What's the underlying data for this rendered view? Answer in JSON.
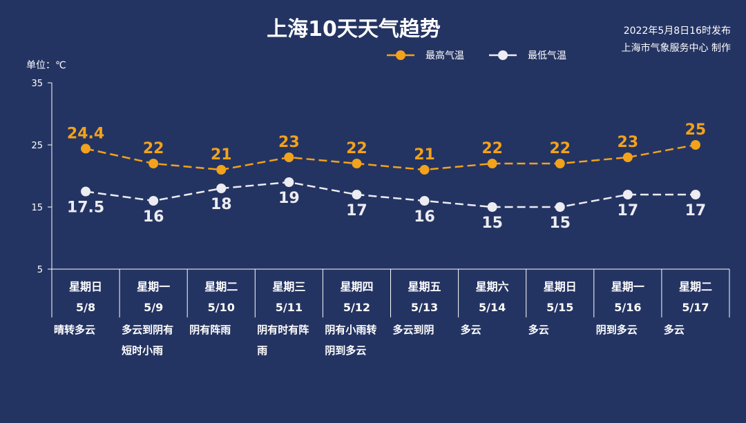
{
  "header": {
    "title": "上海10天天气趋势",
    "publish_time": "2022年5月8日16时发布",
    "publisher": "上海市气象服务中心 制作"
  },
  "unit_label": "单位：℃",
  "colors": {
    "background": "#243462",
    "high": "#f3a21b",
    "low": "#ececf2",
    "axis": "#ffffff"
  },
  "chart_data": {
    "type": "line",
    "title": "上海10天天气趋势",
    "ylabel": "单位：℃",
    "ylim": [
      5,
      35
    ],
    "yticks": [
      5,
      15,
      25,
      35
    ],
    "grid": false,
    "legend_position": "top-right",
    "categories": [
      {
        "day": "星期日",
        "date": "5/8",
        "weather": [
          "晴转多云"
        ]
      },
      {
        "day": "星期一",
        "date": "5/9",
        "weather": [
          "多云到阴有",
          "短时小雨"
        ]
      },
      {
        "day": "星期二",
        "date": "5/10",
        "weather": [
          "阴有阵雨"
        ]
      },
      {
        "day": "星期三",
        "date": "5/11",
        "weather": [
          "阴有时有阵",
          "雨"
        ]
      },
      {
        "day": "星期四",
        "date": "5/12",
        "weather": [
          "阴有小雨转",
          "阴到多云"
        ]
      },
      {
        "day": "星期五",
        "date": "5/13",
        "weather": [
          "多云到阴"
        ]
      },
      {
        "day": "星期六",
        "date": "5/14",
        "weather": [
          "多云"
        ]
      },
      {
        "day": "星期日",
        "date": "5/15",
        "weather": [
          "多云"
        ]
      },
      {
        "day": "星期一",
        "date": "5/16",
        "weather": [
          "阴到多云"
        ]
      },
      {
        "day": "星期二",
        "date": "5/17",
        "weather": [
          "多云"
        ]
      }
    ],
    "series": [
      {
        "name": "最高气温",
        "key": "high",
        "values": [
          24.4,
          22,
          21,
          23,
          22,
          21,
          22,
          22,
          23,
          25
        ],
        "labels": [
          "24.4",
          "22",
          "21",
          "23",
          "22",
          "21",
          "22",
          "22",
          "23",
          "25"
        ]
      },
      {
        "name": "最低气温",
        "key": "low",
        "values": [
          17.5,
          16,
          18,
          19,
          17,
          16,
          15,
          15,
          17,
          17
        ],
        "labels": [
          "17.5",
          "16",
          "18",
          "19",
          "17",
          "16",
          "15",
          "15",
          "17",
          "17"
        ]
      }
    ]
  }
}
